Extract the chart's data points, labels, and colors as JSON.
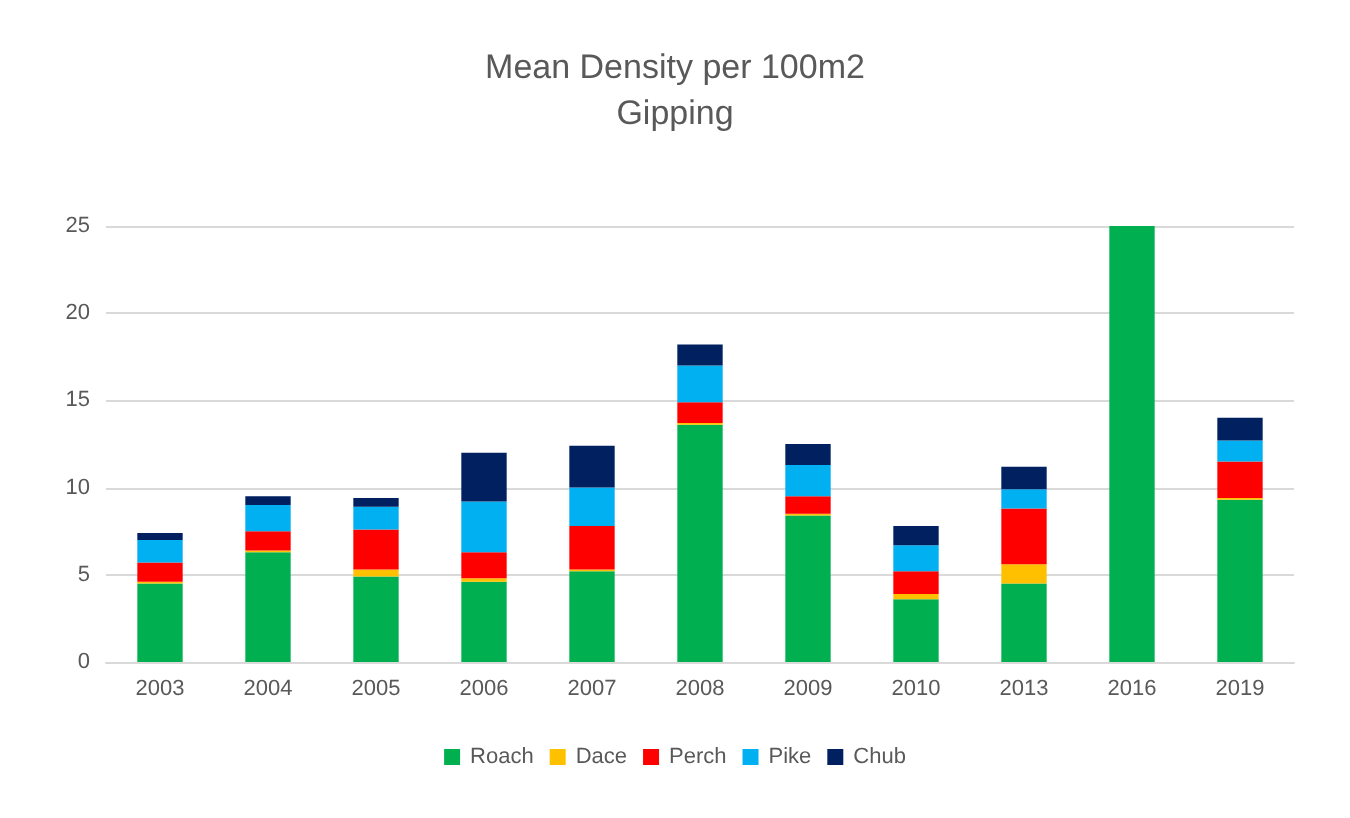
{
  "chart_data": {
    "type": "bar",
    "title": "Mean Density per 100m2",
    "subtitle": "Gipping",
    "categories": [
      "2003",
      "2004",
      "2005",
      "2006",
      "2007",
      "2008",
      "2009",
      "2010",
      "2013",
      "2016",
      "2019"
    ],
    "stacked": true,
    "series": [
      {
        "name": "Roach",
        "color": "#00b050",
        "values": [
          4.5,
          6.3,
          4.9,
          4.6,
          5.2,
          13.6,
          8.4,
          3.6,
          4.5,
          25,
          9.3
        ]
      },
      {
        "name": "Dace",
        "color": "#ffc000",
        "values": [
          0.1,
          0.1,
          0.4,
          0.2,
          0.1,
          0.1,
          0.1,
          0.3,
          1.1,
          0,
          0.1
        ]
      },
      {
        "name": "Perch",
        "color": "#ff0000",
        "values": [
          1.1,
          1.1,
          2.3,
          1.5,
          2.5,
          1.2,
          1.0,
          1.3,
          3.2,
          0,
          2.1
        ]
      },
      {
        "name": "Pike",
        "color": "#00b0f0",
        "values": [
          1.3,
          1.5,
          1.3,
          2.9,
          2.2,
          2.1,
          1.8,
          1.5,
          1.1,
          0,
          1.2
        ]
      },
      {
        "name": "Chub",
        "color": "#002060",
        "values": [
          0.4,
          0.5,
          0.5,
          2.8,
          2.4,
          1.2,
          1.2,
          1.1,
          1.3,
          0,
          1.3
        ]
      }
    ],
    "ylim": [
      0,
      25
    ],
    "yticks": [
      0,
      5,
      10,
      15,
      20,
      25
    ],
    "grid": "y",
    "legend": "bottom"
  }
}
